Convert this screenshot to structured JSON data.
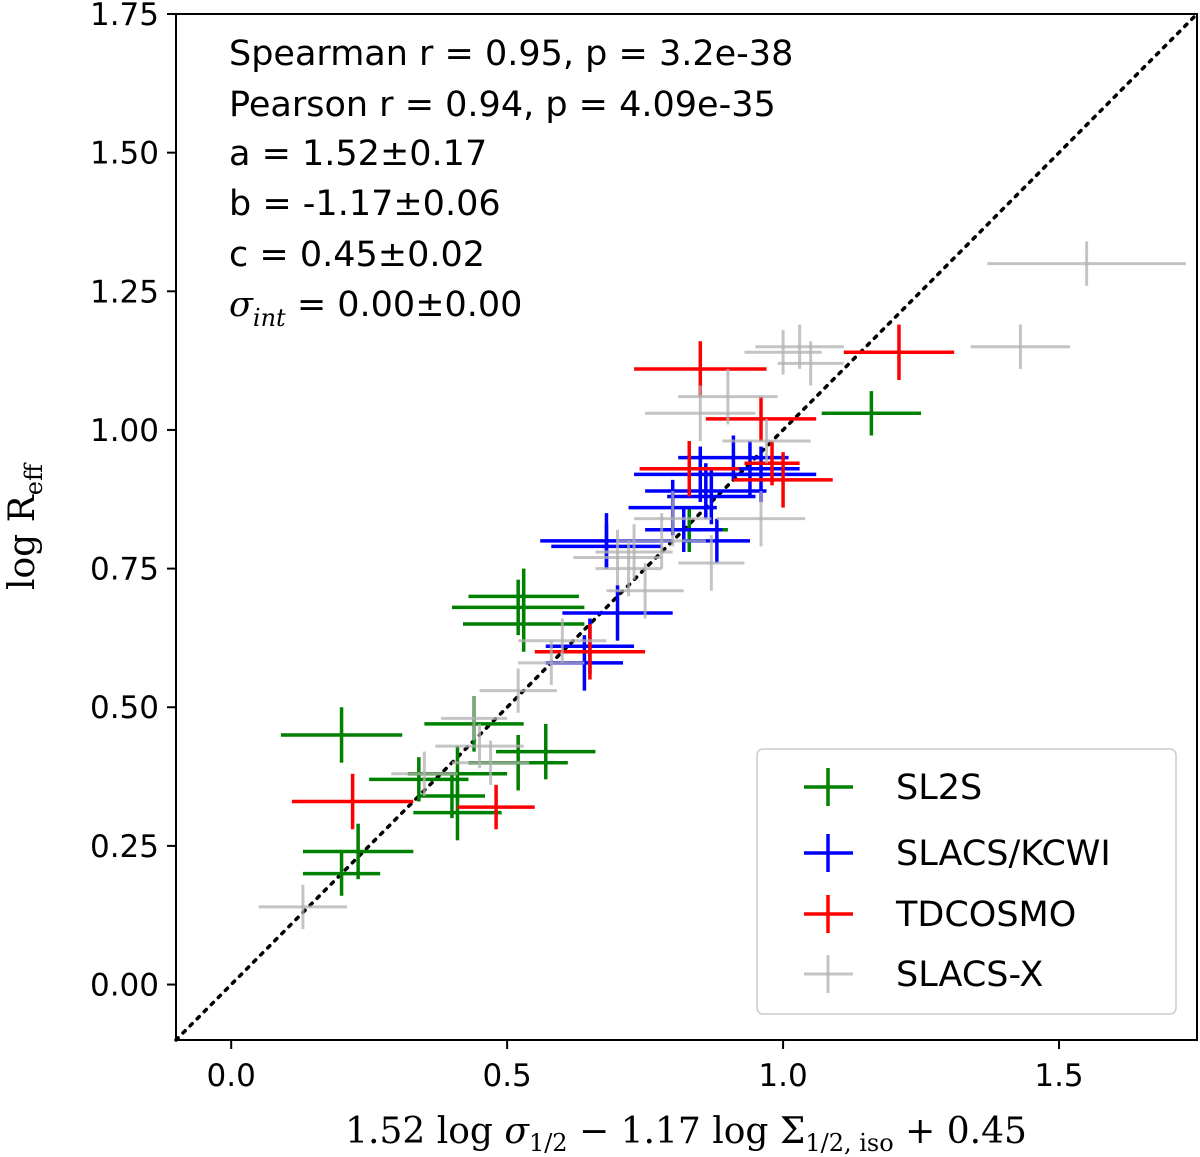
{
  "chart_data": {
    "type": "scatter",
    "xlabel": "1.52 log σ1/2 − 1.17 log Σ1/2, iso + 0.45",
    "ylabel": "log Reff",
    "xlim": [
      -0.1,
      1.75
    ],
    "ylim": [
      -0.1,
      1.75
    ],
    "x_ticks": [
      "0.0",
      "0.5",
      "1.0",
      "1.5"
    ],
    "y_ticks": [
      "0.00",
      "0.25",
      "0.50",
      "0.75",
      "1.00",
      "1.25",
      "1.50",
      "1.75"
    ],
    "x_tick_values": [
      0.0,
      0.5,
      1.0,
      1.5
    ],
    "y_tick_values": [
      0.0,
      0.25,
      0.5,
      0.75,
      1.0,
      1.25,
      1.5,
      1.75
    ],
    "one_to_one_line": true,
    "stats": {
      "spearman": "Spearman r = 0.95, p = 3.2e-38",
      "pearson": "Pearson r = 0.94, p = 4.09e-35",
      "a": "a = 1.52±0.17",
      "b": "b = -1.17±0.06",
      "c": "c = 0.45±0.02",
      "sigma_label": "σ",
      "sigma_sub": "int",
      "sigma_value": " = 0.00±0.00"
    },
    "legend_position": "lower-right",
    "series": [
      {
        "name": "SL2S",
        "color": "#008000",
        "points": [
          {
            "x": 0.53,
            "y": 0.7,
            "xerr": 0.1,
            "yerr": 0.05
          },
          {
            "x": 0.52,
            "y": 0.68,
            "xerr": 0.12,
            "yerr": 0.05
          },
          {
            "x": 0.53,
            "y": 0.65,
            "xerr": 0.11,
            "yerr": 0.05
          },
          {
            "x": 0.44,
            "y": 0.47,
            "xerr": 0.09,
            "yerr": 0.05
          },
          {
            "x": 0.57,
            "y": 0.42,
            "xerr": 0.09,
            "yerr": 0.05
          },
          {
            "x": 0.52,
            "y": 0.4,
            "xerr": 0.09,
            "yerr": 0.05
          },
          {
            "x": 0.41,
            "y": 0.38,
            "xerr": 0.09,
            "yerr": 0.05
          },
          {
            "x": 0.34,
            "y": 0.37,
            "xerr": 0.09,
            "yerr": 0.04
          },
          {
            "x": 0.4,
            "y": 0.34,
            "xerr": 0.06,
            "yerr": 0.04
          },
          {
            "x": 0.41,
            "y": 0.31,
            "xerr": 0.08,
            "yerr": 0.05
          },
          {
            "x": 0.2,
            "y": 0.45,
            "xerr": 0.11,
            "yerr": 0.05
          },
          {
            "x": 0.23,
            "y": 0.24,
            "xerr": 0.1,
            "yerr": 0.05
          },
          {
            "x": 0.2,
            "y": 0.2,
            "xerr": 0.07,
            "yerr": 0.04
          },
          {
            "x": 0.83,
            "y": 0.82,
            "xerr": 0.07,
            "yerr": 0.04
          },
          {
            "x": 1.16,
            "y": 1.03,
            "xerr": 0.09,
            "yerr": 0.04
          }
        ]
      },
      {
        "name": "SLACS/KCWI",
        "color": "#0000ff",
        "points": [
          {
            "x": 0.68,
            "y": 0.8,
            "xerr": 0.12,
            "yerr": 0.05
          },
          {
            "x": 0.68,
            "y": 0.79,
            "xerr": 0.1,
            "yerr": 0.04
          },
          {
            "x": 0.7,
            "y": 0.67,
            "xerr": 0.1,
            "yerr": 0.05
          },
          {
            "x": 0.65,
            "y": 0.61,
            "xerr": 0.08,
            "yerr": 0.05
          },
          {
            "x": 0.64,
            "y": 0.58,
            "xerr": 0.07,
            "yerr": 0.05
          },
          {
            "x": 0.85,
            "y": 0.92,
            "xerr": 0.12,
            "yerr": 0.05
          },
          {
            "x": 0.86,
            "y": 0.89,
            "xerr": 0.11,
            "yerr": 0.05
          },
          {
            "x": 0.91,
            "y": 0.95,
            "xerr": 0.1,
            "yerr": 0.04
          },
          {
            "x": 0.94,
            "y": 0.93,
            "xerr": 0.09,
            "yerr": 0.05
          },
          {
            "x": 0.87,
            "y": 0.88,
            "xerr": 0.08,
            "yerr": 0.05
          },
          {
            "x": 0.8,
            "y": 0.86,
            "xerr": 0.08,
            "yerr": 0.05
          },
          {
            "x": 0.82,
            "y": 0.82,
            "xerr": 0.07,
            "yerr": 0.04
          },
          {
            "x": 0.96,
            "y": 0.92,
            "xerr": 0.1,
            "yerr": 0.05
          },
          {
            "x": 0.88,
            "y": 0.8,
            "xerr": 0.06,
            "yerr": 0.04
          }
        ]
      },
      {
        "name": "TDCOSMO",
        "color": "#ff0000",
        "points": [
          {
            "x": 0.85,
            "y": 1.11,
            "xerr": 0.12,
            "yerr": 0.05
          },
          {
            "x": 1.21,
            "y": 1.14,
            "xerr": 0.1,
            "yerr": 0.05
          },
          {
            "x": 0.96,
            "y": 1.02,
            "xerr": 0.1,
            "yerr": 0.04
          },
          {
            "x": 0.83,
            "y": 0.93,
            "xerr": 0.09,
            "yerr": 0.05
          },
          {
            "x": 1.0,
            "y": 0.91,
            "xerr": 0.09,
            "yerr": 0.05
          },
          {
            "x": 0.98,
            "y": 0.94,
            "xerr": 0.05,
            "yerr": 0.04
          },
          {
            "x": 0.65,
            "y": 0.6,
            "xerr": 0.1,
            "yerr": 0.05
          },
          {
            "x": 0.22,
            "y": 0.33,
            "xerr": 0.11,
            "yerr": 0.05
          },
          {
            "x": 0.48,
            "y": 0.32,
            "xerr": 0.07,
            "yerr": 0.04
          }
        ]
      },
      {
        "name": "SLACS-X",
        "color": "#b0b0b0",
        "points": [
          {
            "x": 1.55,
            "y": 1.3,
            "xerr": 0.18,
            "yerr": 0.04
          },
          {
            "x": 1.43,
            "y": 1.15,
            "xerr": 0.09,
            "yerr": 0.04
          },
          {
            "x": 1.03,
            "y": 1.15,
            "xerr": 0.08,
            "yerr": 0.04
          },
          {
            "x": 1.0,
            "y": 1.14,
            "xerr": 0.07,
            "yerr": 0.04
          },
          {
            "x": 1.05,
            "y": 1.12,
            "xerr": 0.06,
            "yerr": 0.04
          },
          {
            "x": 0.9,
            "y": 1.06,
            "xerr": 0.09,
            "yerr": 0.05
          },
          {
            "x": 0.85,
            "y": 1.03,
            "xerr": 0.1,
            "yerr": 0.05
          },
          {
            "x": 0.97,
            "y": 0.98,
            "xerr": 0.08,
            "yerr": 0.04
          },
          {
            "x": 0.8,
            "y": 0.84,
            "xerr": 0.07,
            "yerr": 0.05
          },
          {
            "x": 0.78,
            "y": 0.8,
            "xerr": 0.08,
            "yerr": 0.05
          },
          {
            "x": 0.73,
            "y": 0.78,
            "xerr": 0.07,
            "yerr": 0.05
          },
          {
            "x": 0.7,
            "y": 0.77,
            "xerr": 0.08,
            "yerr": 0.05
          },
          {
            "x": 0.72,
            "y": 0.75,
            "xerr": 0.06,
            "yerr": 0.05
          },
          {
            "x": 0.75,
            "y": 0.71,
            "xerr": 0.07,
            "yerr": 0.05
          },
          {
            "x": 0.87,
            "y": 0.76,
            "xerr": 0.06,
            "yerr": 0.05
          },
          {
            "x": 0.96,
            "y": 0.84,
            "xerr": 0.08,
            "yerr": 0.05
          },
          {
            "x": 0.6,
            "y": 0.62,
            "xerr": 0.08,
            "yerr": 0.04
          },
          {
            "x": 0.58,
            "y": 0.58,
            "xerr": 0.06,
            "yerr": 0.04
          },
          {
            "x": 0.52,
            "y": 0.53,
            "xerr": 0.07,
            "yerr": 0.04
          },
          {
            "x": 0.44,
            "y": 0.48,
            "xerr": 0.06,
            "yerr": 0.04
          },
          {
            "x": 0.45,
            "y": 0.43,
            "xerr": 0.08,
            "yerr": 0.04
          },
          {
            "x": 0.47,
            "y": 0.4,
            "xerr": 0.07,
            "yerr": 0.04
          },
          {
            "x": 0.35,
            "y": 0.38,
            "xerr": 0.06,
            "yerr": 0.04
          },
          {
            "x": 0.13,
            "y": 0.14,
            "xerr": 0.08,
            "yerr": 0.04
          }
        ]
      }
    ]
  }
}
